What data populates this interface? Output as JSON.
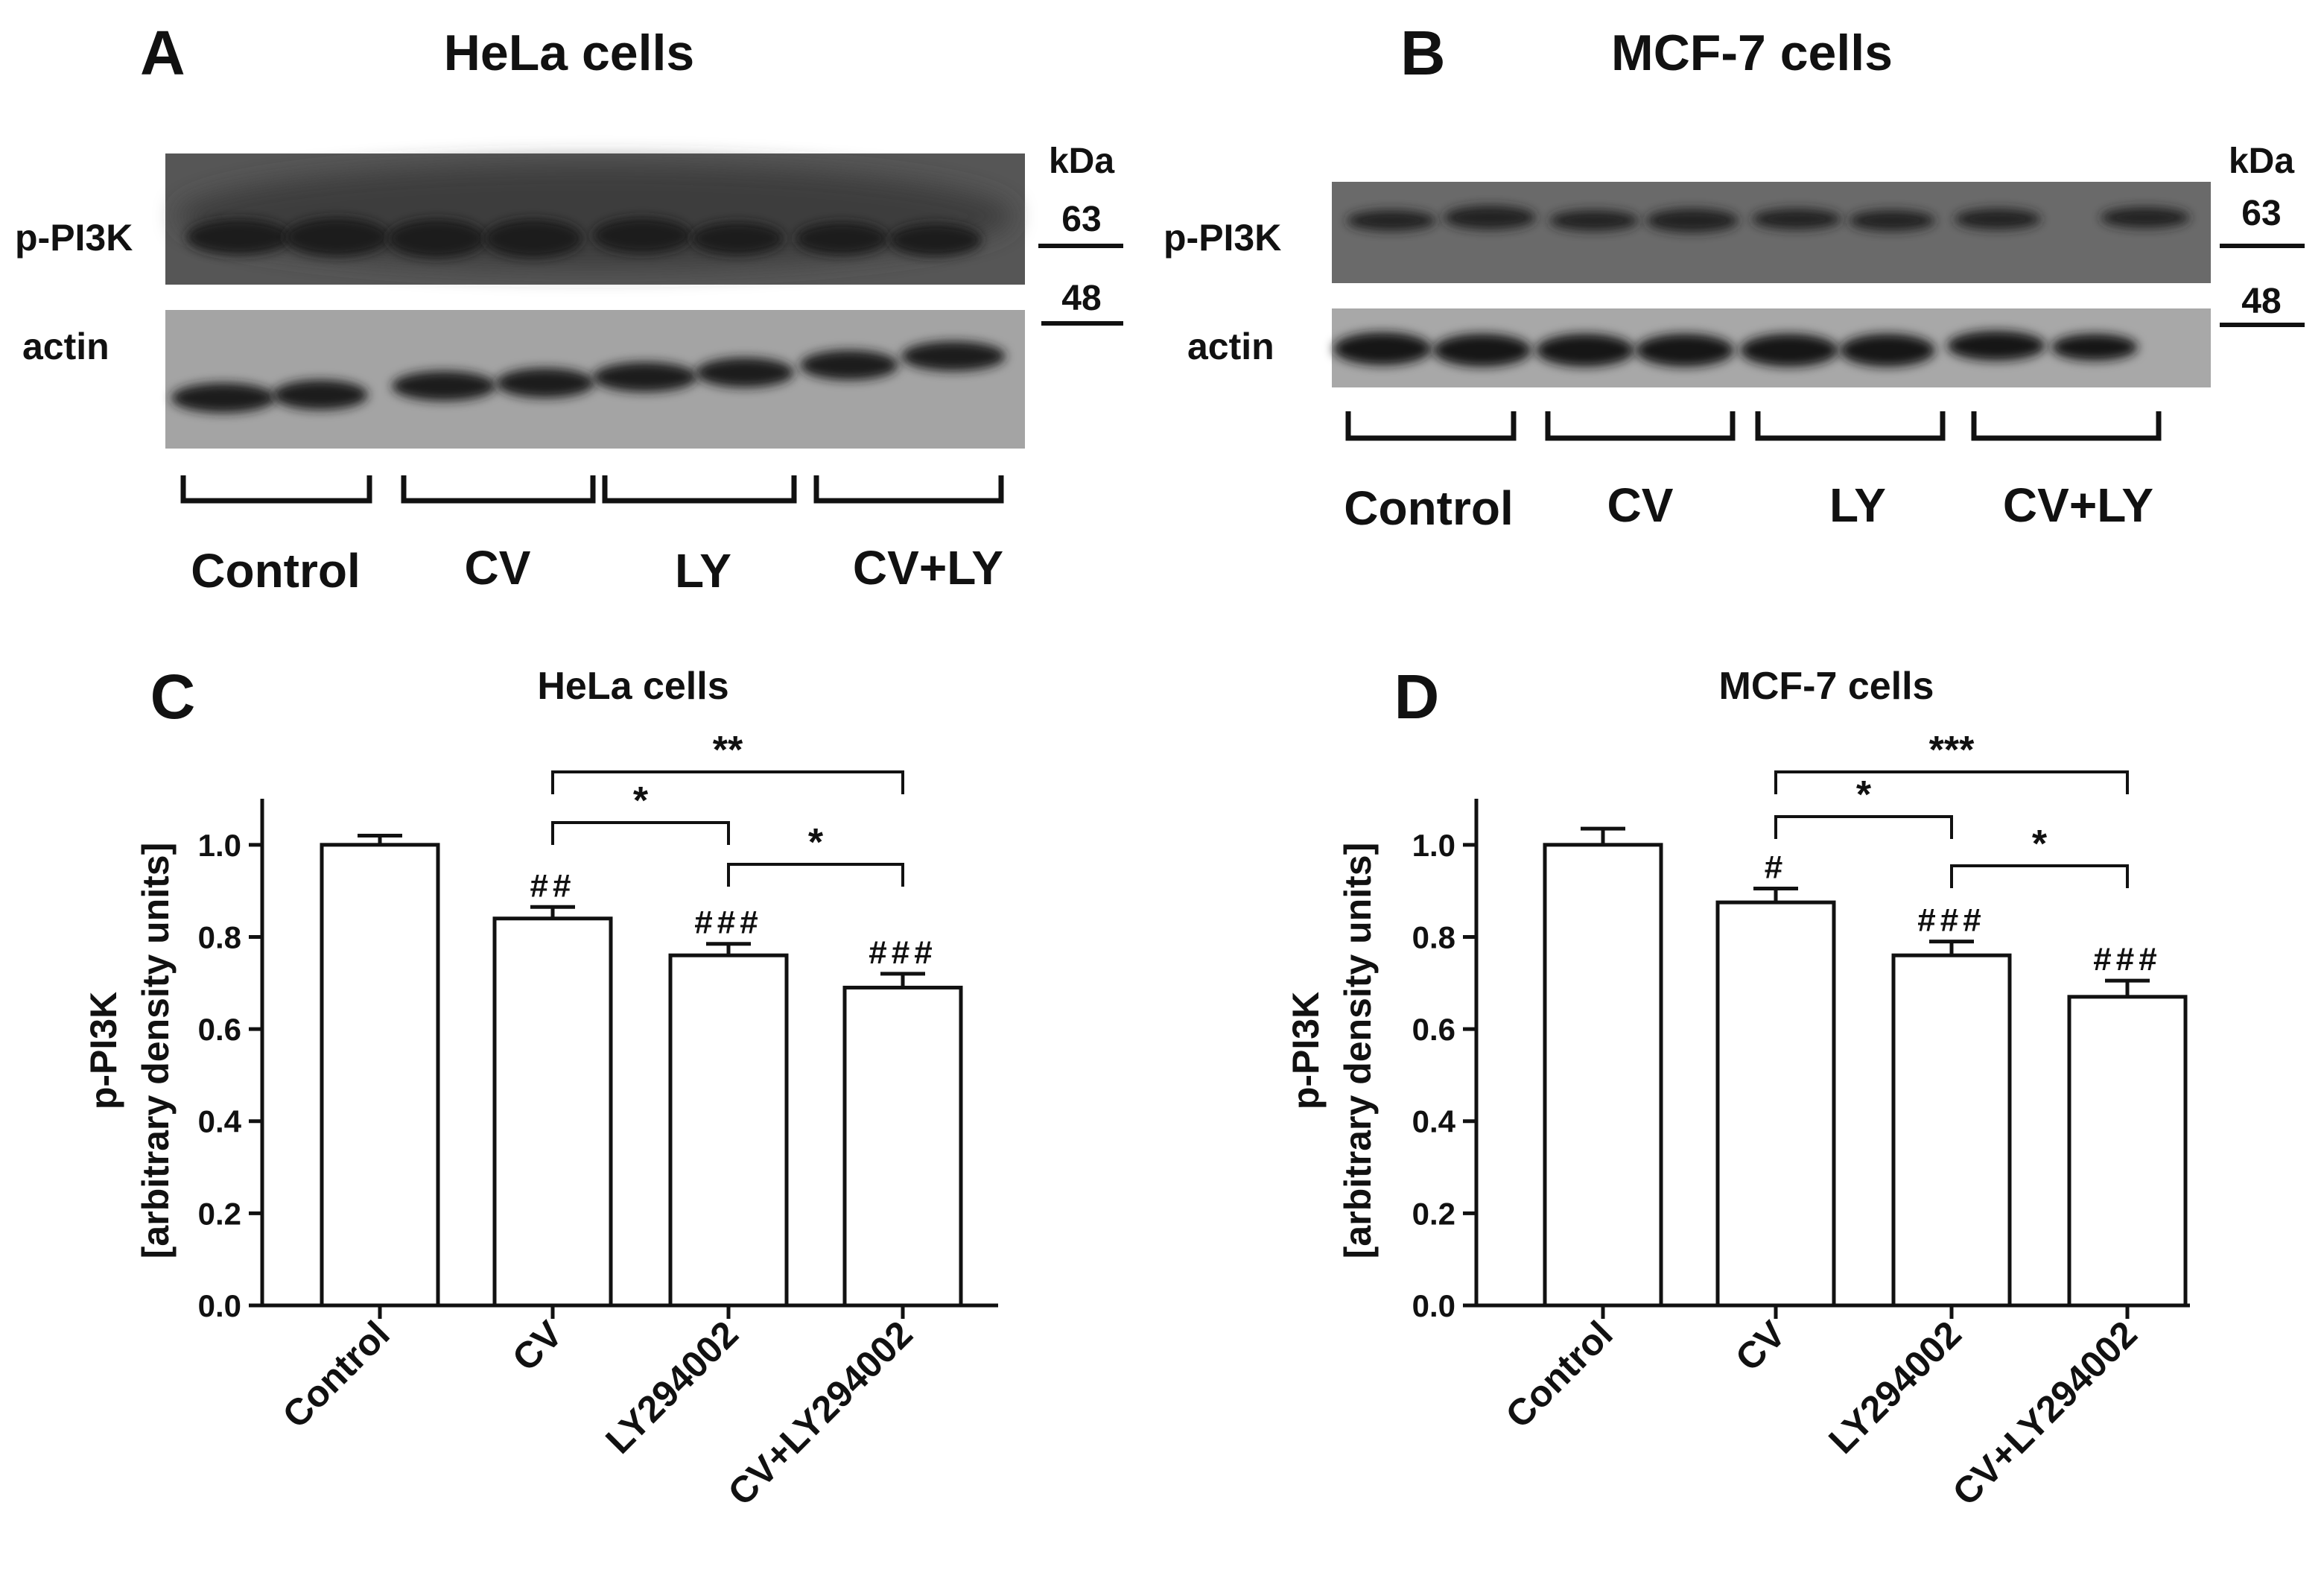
{
  "blots": {
    "A": {
      "panel_letter": "A",
      "title": "HeLa cells",
      "row_labels": [
        "p-PI3K",
        "actin"
      ],
      "kda_header": "kDa",
      "markers": [
        "63",
        "48"
      ],
      "groups": [
        "Control",
        "CV",
        "LY",
        "CV+LY"
      ]
    },
    "B": {
      "panel_letter": "B",
      "title": "MCF-7 cells",
      "row_labels": [
        "p-PI3K",
        "actin"
      ],
      "kda_header": "kDa",
      "markers": [
        "63",
        "48"
      ],
      "groups": [
        "Control",
        "CV",
        "LY",
        "CV+LY"
      ]
    }
  },
  "chart_data": [
    {
      "panel_letter": "C",
      "type": "bar",
      "title": "HeLa cells",
      "ylabel_line1": "p-PI3K",
      "ylabel_line2": "[arbitrary density units]",
      "ylim": [
        0,
        1.1
      ],
      "yticks": [
        "0.0",
        "0.2",
        "0.4",
        "0.6",
        "0.8",
        "1.0"
      ],
      "categories": [
        "Control",
        "CV",
        "LY294002",
        "CV+LY294002"
      ],
      "values": [
        1.0,
        0.84,
        0.76,
        0.69
      ],
      "errors": [
        0.02,
        0.025,
        0.025,
        0.03
      ],
      "marks": [
        "",
        "##",
        "###",
        "###"
      ],
      "comparisons": [
        {
          "from": 1,
          "to": 2,
          "label": "*"
        },
        {
          "from": 2,
          "to": 3,
          "label": "*"
        },
        {
          "from": 1,
          "to": 3,
          "label": "**"
        }
      ]
    },
    {
      "panel_letter": "D",
      "type": "bar",
      "title": "MCF-7 cells",
      "ylabel_line1": "p-PI3K",
      "ylabel_line2": "[arbitrary density units]",
      "ylim": [
        0,
        1.1
      ],
      "yticks": [
        "0.0",
        "0.2",
        "0.4",
        "0.6",
        "0.8",
        "1.0"
      ],
      "categories": [
        "Control",
        "CV",
        "LY294002",
        "CV+LY294002"
      ],
      "values": [
        1.0,
        0.875,
        0.76,
        0.67
      ],
      "errors": [
        0.035,
        0.03,
        0.03,
        0.035
      ],
      "marks": [
        "",
        "#",
        "###",
        "###"
      ],
      "comparisons": [
        {
          "from": 1,
          "to": 2,
          "label": "*"
        },
        {
          "from": 2,
          "to": 3,
          "label": "*"
        },
        {
          "from": 1,
          "to": 3,
          "label": "***"
        }
      ]
    }
  ]
}
